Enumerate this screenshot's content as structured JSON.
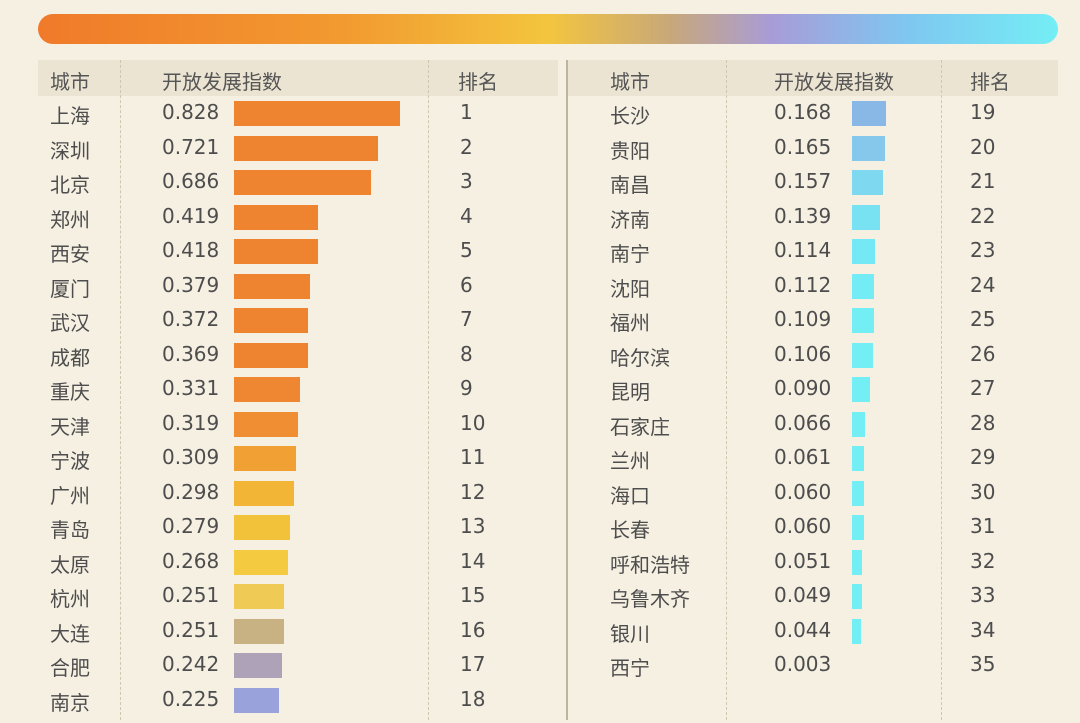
{
  "headers": {
    "city": "城市",
    "index": "开放发展指数",
    "rank": "排名"
  },
  "chart_data": {
    "type": "table",
    "columns": [
      "城市",
      "开放发展指数",
      "排名"
    ],
    "rows": [
      {
        "city": "上海",
        "value": 0.828,
        "value_text": "0.828",
        "rank": "1",
        "color": "#ef8430"
      },
      {
        "city": "深圳",
        "value": 0.721,
        "value_text": "0.721",
        "rank": "2",
        "color": "#ef8430"
      },
      {
        "city": "北京",
        "value": 0.686,
        "value_text": "0.686",
        "rank": "3",
        "color": "#ef8430"
      },
      {
        "city": "郑州",
        "value": 0.419,
        "value_text": "0.419",
        "rank": "4",
        "color": "#ef8430"
      },
      {
        "city": "西安",
        "value": 0.418,
        "value_text": "0.418",
        "rank": "5",
        "color": "#ef8430"
      },
      {
        "city": "厦门",
        "value": 0.379,
        "value_text": "0.379",
        "rank": "6",
        "color": "#ef8430"
      },
      {
        "city": "武汉",
        "value": 0.372,
        "value_text": "0.372",
        "rank": "7",
        "color": "#ef8430"
      },
      {
        "city": "成都",
        "value": 0.369,
        "value_text": "0.369",
        "rank": "8",
        "color": "#ef8430"
      },
      {
        "city": "重庆",
        "value": 0.331,
        "value_text": "0.331",
        "rank": "9",
        "color": "#ef8632"
      },
      {
        "city": "天津",
        "value": 0.319,
        "value_text": "0.319",
        "rank": "10",
        "color": "#f08e33"
      },
      {
        "city": "宁波",
        "value": 0.309,
        "value_text": "0.309",
        "rank": "11",
        "color": "#f1a034"
      },
      {
        "city": "广州",
        "value": 0.298,
        "value_text": "0.298",
        "rank": "12",
        "color": "#f2b536"
      },
      {
        "city": "青岛",
        "value": 0.279,
        "value_text": "0.279",
        "rank": "13",
        "color": "#f3c23b"
      },
      {
        "city": "太原",
        "value": 0.268,
        "value_text": "0.268",
        "rank": "14",
        "color": "#f3ca40"
      },
      {
        "city": "杭州",
        "value": 0.251,
        "value_text": "0.251",
        "rank": "15",
        "color": "#efca55"
      },
      {
        "city": "大连",
        "value": 0.251,
        "value_text": "0.251",
        "rank": "16",
        "color": "#c8b283"
      },
      {
        "city": "合肥",
        "value": 0.242,
        "value_text": "0.242",
        "rank": "17",
        "color": "#ada2b8"
      },
      {
        "city": "南京",
        "value": 0.225,
        "value_text": "0.225",
        "rank": "18",
        "color": "#9aa2dc"
      },
      {
        "city": "长沙",
        "value": 0.168,
        "value_text": "0.168",
        "rank": "19",
        "color": "#8ab8e6"
      },
      {
        "city": "贵阳",
        "value": 0.165,
        "value_text": "0.165",
        "rank": "20",
        "color": "#86c8ec"
      },
      {
        "city": "南昌",
        "value": 0.157,
        "value_text": "0.157",
        "rank": "21",
        "color": "#7ed8f0"
      },
      {
        "city": "济南",
        "value": 0.139,
        "value_text": "0.139",
        "rank": "22",
        "color": "#78e2f2"
      },
      {
        "city": "南宁",
        "value": 0.114,
        "value_text": "0.114",
        "rank": "23",
        "color": "#74e8f4"
      },
      {
        "city": "沈阳",
        "value": 0.112,
        "value_text": "0.112",
        "rank": "24",
        "color": "#74ecf5"
      },
      {
        "city": "福州",
        "value": 0.109,
        "value_text": "0.109",
        "rank": "25",
        "color": "#74eef5"
      },
      {
        "city": "哈尔滨",
        "value": 0.106,
        "value_text": "0.106",
        "rank": "26",
        "color": "#74eef5"
      },
      {
        "city": "昆明",
        "value": 0.09,
        "value_text": "0.090",
        "rank": "27",
        "color": "#74eef5"
      },
      {
        "city": "石家庄",
        "value": 0.066,
        "value_text": "0.066",
        "rank": "28",
        "color": "#74eef5"
      },
      {
        "city": "兰州",
        "value": 0.061,
        "value_text": "0.061",
        "rank": "29",
        "color": "#74eef5"
      },
      {
        "city": "海口",
        "value": 0.06,
        "value_text": "0.060",
        "rank": "30",
        "color": "#74eef5"
      },
      {
        "city": "长春",
        "value": 0.06,
        "value_text": "0.060",
        "rank": "31",
        "color": "#74eef5"
      },
      {
        "city": "呼和浩特",
        "value": 0.051,
        "value_text": "0.051",
        "rank": "32",
        "color": "#74eef5"
      },
      {
        "city": "乌鲁木齐",
        "value": 0.049,
        "value_text": "0.049",
        "rank": "33",
        "color": "#74eef5"
      },
      {
        "city": "银川",
        "value": 0.044,
        "value_text": "0.044",
        "rank": "34",
        "color": "#74eef5"
      },
      {
        "city": "西宁",
        "value": 0.003,
        "value_text": "0.003",
        "rank": "35",
        "color": "#74eef5"
      }
    ]
  }
}
